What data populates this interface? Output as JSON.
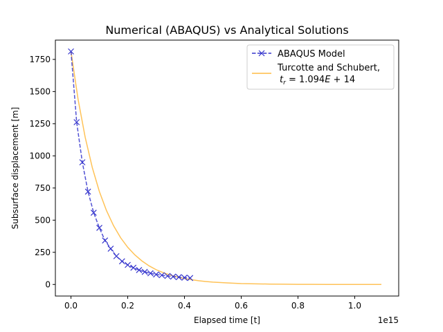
{
  "chart_data": {
    "type": "line",
    "title": "Numerical (ABAQUS) vs Analytical Solutions",
    "xlabel": "Elapsed time [t]",
    "ylabel": "Subsurface displacement [m]",
    "x_offset_label": "1e15",
    "xlim": [
      -0.055,
      1.155
    ],
    "ylim": [
      -90,
      1900
    ],
    "x_ticks": [
      {
        "value": 0.0,
        "label": "0.0"
      },
      {
        "value": 0.2,
        "label": "0.2"
      },
      {
        "value": 0.4,
        "label": "0.4"
      },
      {
        "value": 0.6,
        "label": "0.6"
      },
      {
        "value": 0.8,
        "label": "0.8"
      },
      {
        "value": 1.0,
        "label": "1.0"
      }
    ],
    "y_ticks": [
      {
        "value": 0,
        "label": "0"
      },
      {
        "value": 250,
        "label": "250"
      },
      {
        "value": 500,
        "label": "500"
      },
      {
        "value": 750,
        "label": "750"
      },
      {
        "value": 1000,
        "label": "1000"
      },
      {
        "value": 1250,
        "label": "1250"
      },
      {
        "value": 1500,
        "label": "1500"
      },
      {
        "value": 1750,
        "label": "1750"
      }
    ],
    "grid": false,
    "legend_position": "top-right",
    "series": [
      {
        "name": "ABAQUS Model",
        "style": "dashed-x-markers",
        "color": "#3333cc",
        "x": [
          0.0,
          0.02,
          0.04,
          0.06,
          0.08,
          0.1,
          0.12,
          0.14,
          0.16,
          0.18,
          0.2,
          0.22,
          0.24,
          0.26,
          0.28,
          0.3,
          0.32,
          0.34,
          0.36,
          0.38,
          0.4,
          0.42
        ],
        "y": [
          1812,
          1262,
          950,
          722,
          558,
          440,
          342,
          278,
          220,
          180,
          152,
          130,
          112,
          98,
          87,
          78,
          72,
          66,
          61,
          57,
          53,
          50
        ]
      },
      {
        "name": "Turcotte and Schubert,",
        "name_line2": "t_r = 1.094E+14",
        "style": "solid",
        "color": "#ffbb44",
        "x": [
          0.0,
          0.025,
          0.05,
          0.075,
          0.1,
          0.125,
          0.15,
          0.175,
          0.2,
          0.225,
          0.25,
          0.275,
          0.3,
          0.325,
          0.35,
          0.375,
          0.4,
          0.425,
          0.45,
          0.475,
          0.5,
          0.55,
          0.6,
          0.65,
          0.7,
          0.75,
          0.8,
          0.85,
          0.9,
          0.95,
          1.0,
          1.05,
          1.094
        ],
        "y": [
          1812,
          1440,
          1145,
          910,
          723,
          575,
          457,
          363,
          289,
          230,
          183,
          145,
          115,
          92,
          73,
          58,
          46,
          37,
          29,
          23,
          18,
          12,
          7,
          5,
          3,
          2,
          1,
          1,
          0,
          0,
          0,
          0,
          0
        ]
      }
    ]
  }
}
